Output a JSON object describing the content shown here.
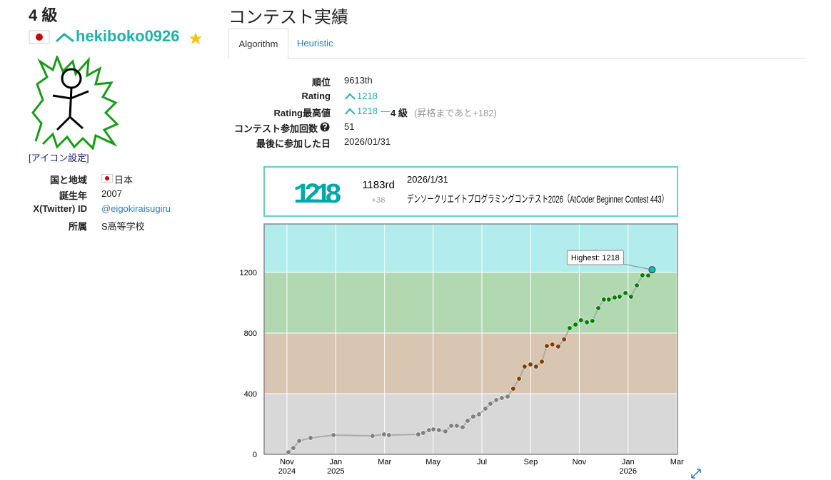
{
  "profile": {
    "rank_title": "4 級",
    "username": "hekiboko0926",
    "icon_link": "[アイコン設定]",
    "fields": [
      {
        "label": "国と地域",
        "value": "日本"
      },
      {
        "label": "誕生年",
        "value": "2007"
      },
      {
        "label": "X(Twitter) ID",
        "value": "@eigokiraisugiru"
      },
      {
        "label": "所属",
        "value": "S高等学校"
      }
    ]
  },
  "contest_history": {
    "title": "コンテスト実績",
    "tabs": [
      "Algorithm",
      "Heuristic"
    ],
    "stats": [
      {
        "label": "順位",
        "value": "9613th"
      },
      {
        "label": "Rating",
        "value": "1218"
      },
      {
        "label": "Rating最高値",
        "value": "1218",
        "dash": "—",
        "rank": "4 級",
        "note": "(昇格まであと+182)"
      },
      {
        "label": "コンテスト参加回数",
        "value": "51"
      },
      {
        "label": "最後に参加した日",
        "value": "2026/01/31"
      }
    ]
  },
  "selected_contest": {
    "rating": "1218",
    "place": "1183rd",
    "diff": "+38",
    "date": "2026/1/31",
    "name": "デンソークリエイトプログラミングコンテスト2026（AtCoder Beginner Contest 443）"
  },
  "chart_data": {
    "type": "line",
    "x": [
      2024.838,
      2024.855,
      2024.875,
      2024.914,
      2024.992,
      2025.126,
      2025.165,
      2025.182,
      2025.282,
      2025.299,
      2025.319,
      2025.334,
      2025.353,
      2025.375,
      2025.395,
      2025.414,
      2025.434,
      2025.451,
      2025.47,
      2025.49,
      2025.512,
      2025.529,
      2025.549,
      2025.568,
      2025.588,
      2025.607,
      2025.627,
      2025.646,
      2025.666,
      2025.685,
      2025.705,
      2025.722,
      2025.741,
      2025.761,
      2025.781,
      2025.8,
      2025.82,
      2025.839,
      2025.859,
      2025.878,
      2025.898,
      2025.917,
      2025.934,
      2025.954,
      2025.971,
      2025.991,
      2026.01,
      2026.03,
      2026.049,
      2026.069,
      2026.082
    ],
    "values": [
      14,
      42,
      89,
      108,
      127,
      122,
      132,
      127,
      132,
      141,
      160,
      165,
      160,
      151,
      188,
      188,
      179,
      221,
      249,
      264,
      301,
      334,
      358,
      372,
      381,
      433,
      499,
      579,
      593,
      579,
      612,
      715,
      725,
      711,
      758,
      833,
      856,
      885,
      871,
      880,
      965,
      1021,
      1021,
      1035,
      1040,
      1064,
      1040,
      1115,
      1181,
      1180,
      1218
    ],
    "line_color": "#aaaaaa",
    "bands": [
      {
        "from": 0,
        "to": 400,
        "color": "#d8d8d8",
        "point_color": "#808080"
      },
      {
        "from": 400,
        "to": 800,
        "color": "#d8c5b2",
        "point_color": "#804000"
      },
      {
        "from": 800,
        "to": 1200,
        "color": "#b2d8b2",
        "point_color": "#008000"
      },
      {
        "from": 1200,
        "to": 1520,
        "color": "#b2ecec",
        "point_color": "#00c0c0"
      }
    ],
    "xlim": [
      2024.755,
      2026.169
    ],
    "ylim": [
      0,
      1520
    ],
    "xticks": [
      {
        "value": 2024.833,
        "label": "Nov",
        "year": "2024"
      },
      {
        "value": 2025.0,
        "label": "Jan",
        "year": "2025"
      },
      {
        "value": 2025.167,
        "label": "Mar"
      },
      {
        "value": 2025.333,
        "label": "May"
      },
      {
        "value": 2025.5,
        "label": "Jul"
      },
      {
        "value": 2025.667,
        "label": "Sep"
      },
      {
        "value": 2025.833,
        "label": "Nov"
      },
      {
        "value": 2026.0,
        "label": "Jan",
        "year": "2026"
      },
      {
        "value": 2026.167,
        "label": "Mar"
      }
    ],
    "yticks": [
      0,
      400,
      800,
      1200
    ],
    "grid": true,
    "annotation": "Highest: 1218"
  }
}
